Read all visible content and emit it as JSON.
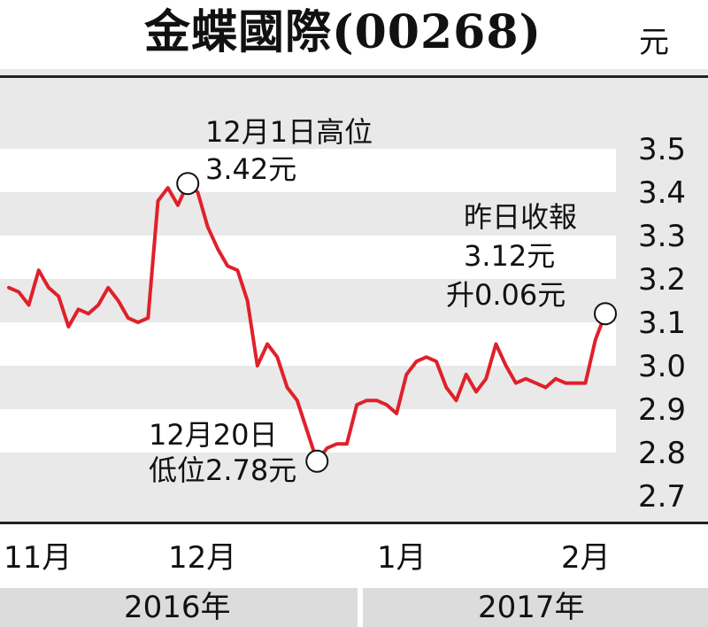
{
  "title": "金蝶國際(00268)",
  "unit": "元",
  "chart_data": {
    "type": "line",
    "title": "金蝶國際(00268)",
    "ylabel": "元",
    "ylim": [
      2.7,
      3.5
    ],
    "yticks": [
      "3.5",
      "3.4",
      "3.3",
      "3.2",
      "3.1",
      "3.0",
      "2.9",
      "2.8",
      "2.7"
    ],
    "x_month_labels": [
      "11月",
      "12月",
      "1月",
      "2月"
    ],
    "x_year_labels": [
      "2016年",
      "2017年"
    ],
    "line_color": "#e0202a",
    "grid": "alternating horizontal bands",
    "series": [
      {
        "values": [
          3.18,
          3.17,
          3.14,
          3.22,
          3.18,
          3.16,
          3.09,
          3.13,
          3.12,
          3.14,
          3.18,
          3.15,
          3.11,
          3.1,
          3.11,
          3.38,
          3.41,
          3.37,
          3.42,
          3.4,
          3.32,
          3.27,
          3.23,
          3.22,
          3.15,
          3.0,
          3.05,
          3.02,
          2.95,
          2.92,
          2.85,
          2.78,
          2.81,
          2.82,
          2.82,
          2.91,
          2.92,
          2.92,
          2.91,
          2.89,
          2.98,
          3.01,
          3.02,
          3.01,
          2.95,
          2.92,
          2.98,
          2.94,
          2.97,
          3.05,
          3.0,
          2.96,
          2.97,
          2.96,
          2.95,
          2.97,
          2.96,
          2.96,
          2.96,
          3.06,
          3.12
        ]
      }
    ],
    "annotations": [
      {
        "line1": "12月1日高位",
        "line2": "3.42元",
        "value": 3.42
      },
      {
        "line1": "12月20日",
        "line2": "低位2.78元",
        "value": 2.78
      },
      {
        "line1": "昨日收報",
        "line2": "3.12元",
        "line3": "升0.06元",
        "value": 3.12
      }
    ]
  }
}
